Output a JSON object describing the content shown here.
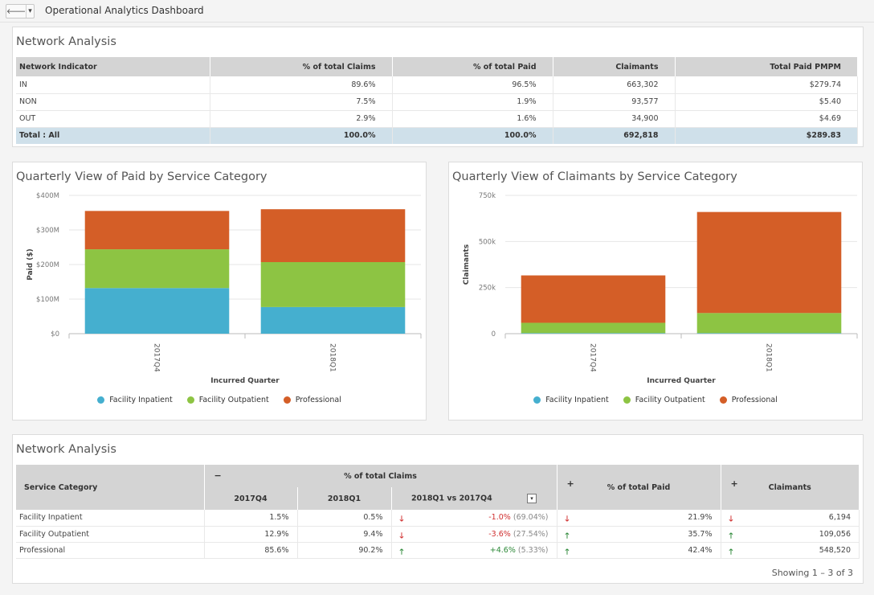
{
  "app": {
    "title": "Operational Analytics Dashboard",
    "back_glyph": "🡐",
    "menu_glyph": "▾"
  },
  "network_table": {
    "title": "Network Analysis",
    "headers": [
      "Network Indicator",
      "% of total Claims",
      "% of total Paid",
      "Claimants",
      "Total Paid PMPM"
    ],
    "rows": [
      [
        "IN",
        "89.6%",
        "96.5%",
        "663,302",
        "$279.74"
      ],
      [
        "NON",
        "7.5%",
        "1.9%",
        "93,577",
        "$5.40"
      ],
      [
        "OUT",
        "2.9%",
        "1.6%",
        "34,900",
        "$4.69"
      ]
    ],
    "total": [
      "Total : All",
      "100.0%",
      "100.0%",
      "692,818",
      "$289.83"
    ]
  },
  "paid_chart": {
    "title": "Quarterly View of Paid by Service Category",
    "chart_data": {
      "type": "bar",
      "stacked": true,
      "categories": [
        "2017Q4",
        "2018Q1"
      ],
      "series": [
        {
          "name": "Facility Inpatient",
          "values": [
            132,
            77
          ],
          "color": "#45afcf"
        },
        {
          "name": "Facility Outpatient",
          "values": [
            112,
            130
          ],
          "color": "#8dc443"
        },
        {
          "name": "Professional",
          "values": [
            111,
            153
          ],
          "color": "#d45e27"
        }
      ],
      "ylim": [
        0,
        400
      ],
      "ytick_values": [
        0,
        100,
        200,
        300,
        400
      ],
      "ytick_labels": [
        "$0",
        "$100M",
        "$200M",
        "$300M",
        "$400M"
      ],
      "ylabel": "Paid ($)",
      "xlabel": "Incurred Quarter",
      "grid": true,
      "legend": "bottom"
    }
  },
  "claimants_chart": {
    "title": "Quarterly View of Claimants by Service Category",
    "chart_data": {
      "type": "bar",
      "stacked": true,
      "categories": [
        "2017Q4",
        "2018Q1"
      ],
      "series": [
        {
          "name": "Facility Inpatient",
          "values": [
            3,
            3
          ],
          "color": "#45afcf"
        },
        {
          "name": "Facility Outpatient",
          "values": [
            56,
            109
          ],
          "color": "#8dc443"
        },
        {
          "name": "Professional",
          "values": [
            257,
            548
          ],
          "color": "#d45e27"
        }
      ],
      "ylim": [
        0,
        750
      ],
      "ytick_values": [
        0,
        250,
        500,
        750
      ],
      "ytick_labels": [
        "0",
        "250k",
        "500k",
        "750k"
      ],
      "ylabel": "Claimants",
      "xlabel": "Incurred Quarter",
      "grid": true,
      "legend": "bottom"
    }
  },
  "service_table": {
    "title": "Network Analysis",
    "headers": {
      "service_category": "Service Category",
      "collapse_glyph": "−",
      "claims_group": "% of total Claims",
      "q1": "2017Q4",
      "q2": "2018Q1",
      "vs": "2018Q1 vs 2017Q4",
      "vs_dropdown": "▾",
      "expand_glyph_1": "+",
      "paid": "% of total Paid",
      "expand_glyph_2": "+",
      "claimants": "Claimants"
    },
    "rows": [
      {
        "category": "Facility Inpatient",
        "q4": "1.5%",
        "q1": "0.5%",
        "vs_arrow": "down",
        "vs_change": "-1.0%",
        "vs_pct": "(69.04%)",
        "paid_arrow": "down",
        "paid": "21.9%",
        "cl_arrow": "down",
        "claimants": "6,194"
      },
      {
        "category": "Facility Outpatient",
        "q4": "12.9%",
        "q1": "9.4%",
        "vs_arrow": "down",
        "vs_change": "-3.6%",
        "vs_pct": "(27.54%)",
        "paid_arrow": "up",
        "paid": "35.7%",
        "cl_arrow": "up",
        "claimants": "109,056"
      },
      {
        "category": "Professional",
        "q4": "85.6%",
        "q1": "90.2%",
        "vs_arrow": "up",
        "vs_change": "+4.6%",
        "vs_pct": "(5.33%)",
        "paid_arrow": "up",
        "paid": "42.4%",
        "cl_arrow": "up",
        "claimants": "548,520"
      }
    ],
    "footer": "Showing 1 – 3 of 3"
  }
}
